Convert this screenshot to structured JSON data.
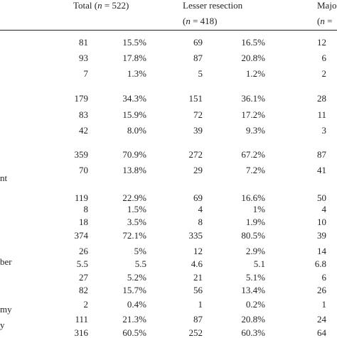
{
  "header": {
    "total": "Total (n = 522)",
    "lesser": "Lesser resection",
    "lesser_n": "(n = 418)",
    "major": "Majo",
    "major_n": "(n ="
  },
  "row_labels": {
    "r9": "nt",
    "r16": "ber",
    "r20": "my",
    "r21": "y"
  },
  "rows": [
    {
      "total_n": "81",
      "total_pct": "15.5%",
      "lesser_n": "69",
      "lesser_pct": "16.5%",
      "major_n": "12"
    },
    {
      "total_n": "93",
      "total_pct": "17.8%",
      "lesser_n": "87",
      "lesser_pct": "20.8%",
      "major_n": "6"
    },
    {
      "total_n": "7",
      "total_pct": "1.3%",
      "lesser_n": "5",
      "lesser_pct": "1.2%",
      "major_n": "2"
    },
    {
      "total_n": "179",
      "total_pct": "34.3%",
      "lesser_n": "151",
      "lesser_pct": "36.1%",
      "major_n": "28"
    },
    {
      "total_n": "83",
      "total_pct": "15.9%",
      "lesser_n": "72",
      "lesser_pct": "17.2%",
      "major_n": "11"
    },
    {
      "total_n": "42",
      "total_pct": "8.0%",
      "lesser_n": "39",
      "lesser_pct": "9.3%",
      "major_n": "3"
    },
    {
      "total_n": "359",
      "total_pct": "70.9%",
      "lesser_n": "272",
      "lesser_pct": "67.2%",
      "major_n": "87"
    },
    {
      "total_n": "70",
      "total_pct": "13.8%",
      "lesser_n": "29",
      "lesser_pct": "7.2%",
      "major_n": "41"
    },
    {
      "total_n": "119",
      "total_pct": "22.9%",
      "lesser_n": "69",
      "lesser_pct": "16.6%",
      "major_n": "50"
    },
    {
      "total_n": "8",
      "total_pct": "1.5%",
      "lesser_n": "4",
      "lesser_pct": "1%",
      "major_n": "4"
    },
    {
      "total_n": "18",
      "total_pct": "3.5%",
      "lesser_n": "8",
      "lesser_pct": "1.9%",
      "major_n": "10"
    },
    {
      "total_n": "374",
      "total_pct": "72.1%",
      "lesser_n": "335",
      "lesser_pct": "80.5%",
      "major_n": "39"
    },
    {
      "total_n": "26",
      "total_pct": "5%",
      "lesser_n": "12",
      "lesser_pct": "2.9%",
      "major_n": "14"
    },
    {
      "total_n": "5.5",
      "total_pct": "5.5",
      "lesser_n": "4.6",
      "lesser_pct": "5.1",
      "major_n": "6.8"
    },
    {
      "total_n": "27",
      "total_pct": "5.2%",
      "lesser_n": "21",
      "lesser_pct": "5.1%",
      "major_n": "6"
    },
    {
      "total_n": "82",
      "total_pct": "15.7%",
      "lesser_n": "56",
      "lesser_pct": "13.4%",
      "major_n": "26"
    },
    {
      "total_n": "2",
      "total_pct": "0.4%",
      "lesser_n": "1",
      "lesser_pct": "0.2%",
      "major_n": "1"
    },
    {
      "total_n": "111",
      "total_pct": "21.3%",
      "lesser_n": "87",
      "lesser_pct": "20.8%",
      "major_n": "24"
    },
    {
      "total_n": "316",
      "total_pct": "60.5%",
      "lesser_n": "252",
      "lesser_pct": "60.3%",
      "major_n": "64"
    }
  ]
}
